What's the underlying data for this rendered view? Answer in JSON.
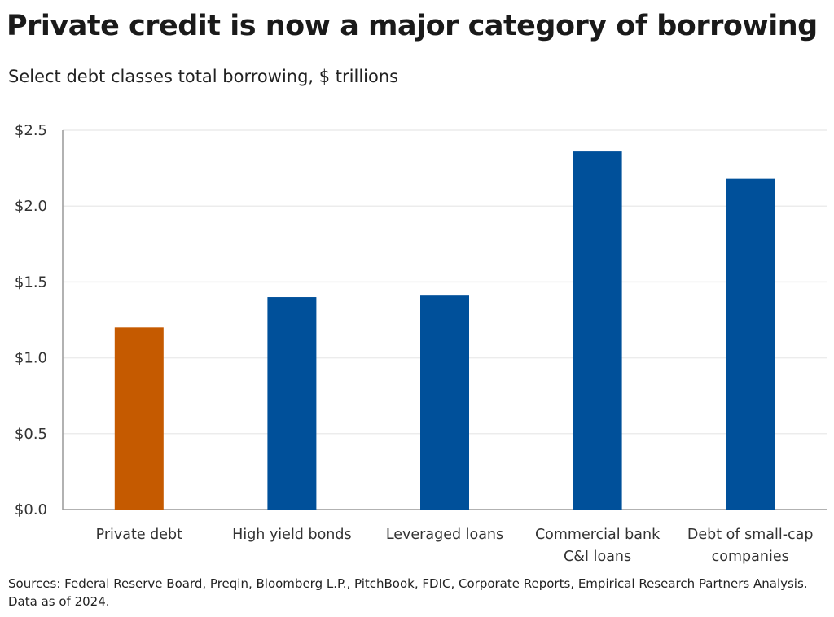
{
  "title": "Private credit is now a major category of borrowing",
  "subtitle": "Select debt classes total borrowing, $ trillions",
  "source": "Sources: Federal Reserve Board, Preqin, Bloomberg L.P., PitchBook, FDIC, Corporate Reports, Empirical Research Partners Analysis. Data as of 2024.",
  "chart_data": {
    "type": "bar",
    "title": "Private credit is now a major category of borrowing",
    "subtitle": "Select debt classes total borrowing, $ trillions",
    "xlabel": "",
    "ylabel": "$ trillions",
    "ylim": [
      0,
      2.5
    ],
    "yticks": [
      0,
      0.5,
      1.0,
      1.5,
      2.0,
      2.5
    ],
    "ytick_labels": [
      "$0.0",
      "$0.5",
      "$1.0",
      "$1.5",
      "$2.0",
      "$2.5"
    ],
    "grid": true,
    "categories": [
      [
        "Private debt"
      ],
      [
        "High yield bonds"
      ],
      [
        "Leveraged loans"
      ],
      [
        "Commercial bank",
        "C&I loans"
      ],
      [
        "Debt of small-cap",
        "companies"
      ]
    ],
    "values": [
      1.2,
      1.4,
      1.41,
      2.36,
      2.18
    ],
    "colors": [
      "#C55A00",
      "#00509A",
      "#00509A",
      "#00509A",
      "#00509A"
    ]
  }
}
